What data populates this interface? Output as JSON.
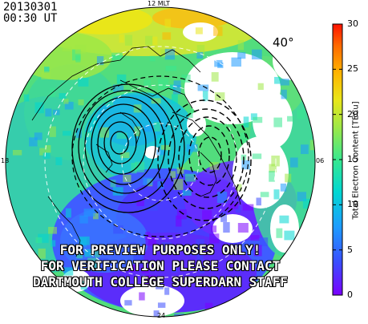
{
  "header": {
    "date": "20130301",
    "time": "00:30  UT"
  },
  "map": {
    "mlt_top": "12 MLT",
    "mlt_left": "18",
    "mlt_right": "06",
    "mlt_bottom": "24",
    "latitude_label": "40°"
  },
  "watermark": {
    "line1": "FOR PREVIEW PURPOSES ONLY!",
    "line2": "FOR VERIFICATION PLEASE CONTACT",
    "line3": "DARTMOUTH COLLEGE SUPERDARN STAFF"
  },
  "colorbar": {
    "title": "Total Electron Content [TECu]",
    "ticks": [
      "30",
      "25",
      "20",
      "15",
      "10",
      "5",
      "0"
    ],
    "min": 0,
    "max": 30,
    "colors": [
      "#7a00ff",
      "#3a4dff",
      "#1e9bff",
      "#00d7d2",
      "#38e88f",
      "#9ee846",
      "#e9e619",
      "#ffb400",
      "#ff6a00",
      "#ff1200"
    ]
  }
}
